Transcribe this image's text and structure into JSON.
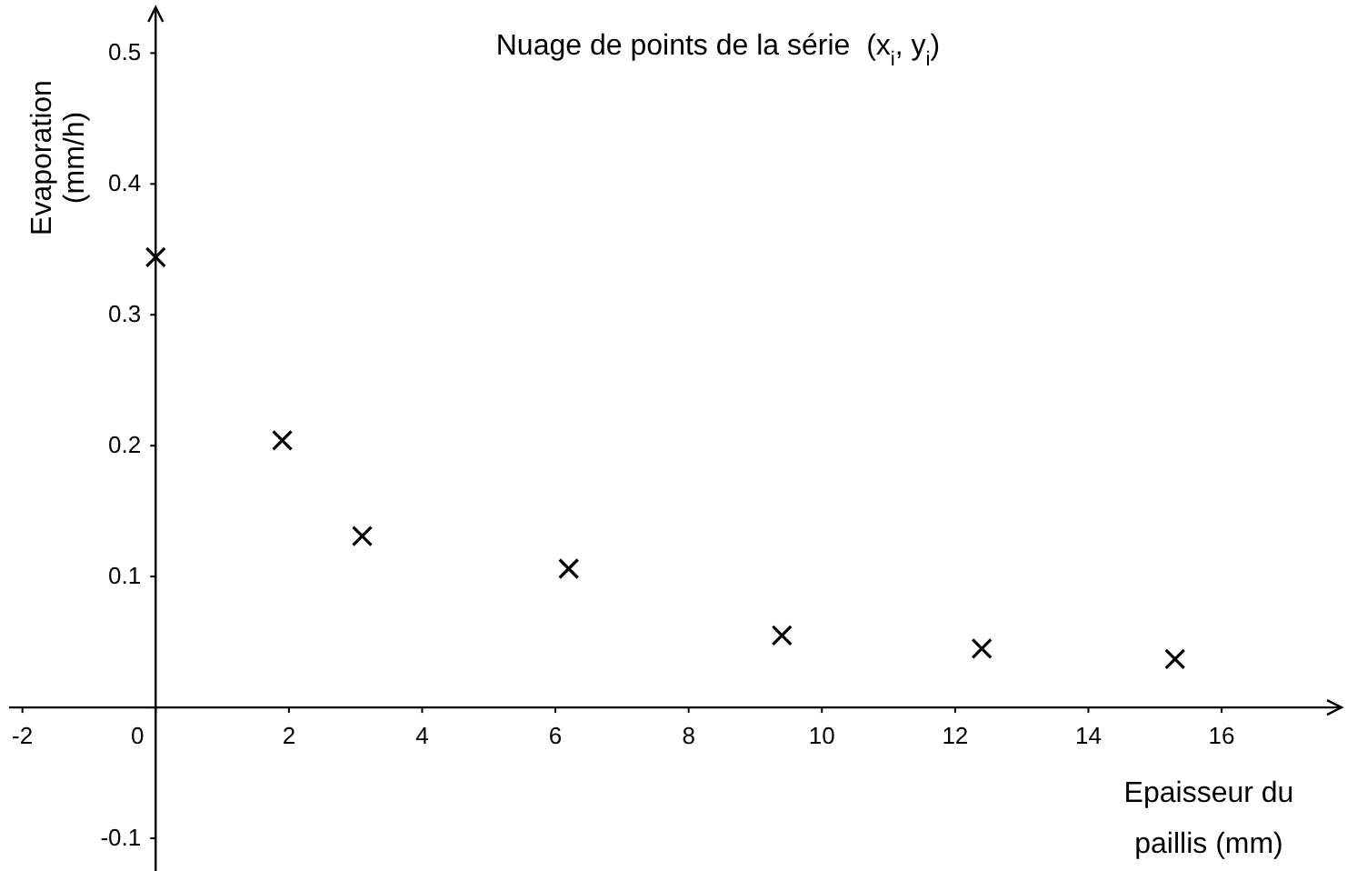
{
  "chart_data": {
    "type": "scatter",
    "title": "Nuage de points de la série  (x$_{i}$, y$_{i}$)",
    "xlabel": "Epaisseur du paillis  (mm)",
    "ylabel": "Evaporation (mm/h)",
    "x": [
      0,
      1.9,
      3.1,
      6.2,
      9.4,
      12.4,
      15.3
    ],
    "series": [
      {
        "color": "#000000",
        "values": [
          0.344,
          0.204,
          0.131,
          0.106,
          0.055,
          0.045,
          0.037
        ]
      }
    ],
    "xlim": [
      -2.2,
      17.8
    ],
    "ylim": [
      -0.125,
      0.535
    ],
    "xticks": [
      -2,
      0,
      2,
      4,
      6,
      8,
      10,
      12,
      14,
      16
    ],
    "yticks": [
      -0.1,
      {
        "value": 0,
        "label": null
      },
      0.1,
      0.2,
      0.3,
      0.4,
      0.5
    ],
    "marker": "cross",
    "grid": false,
    "legend": false
  }
}
